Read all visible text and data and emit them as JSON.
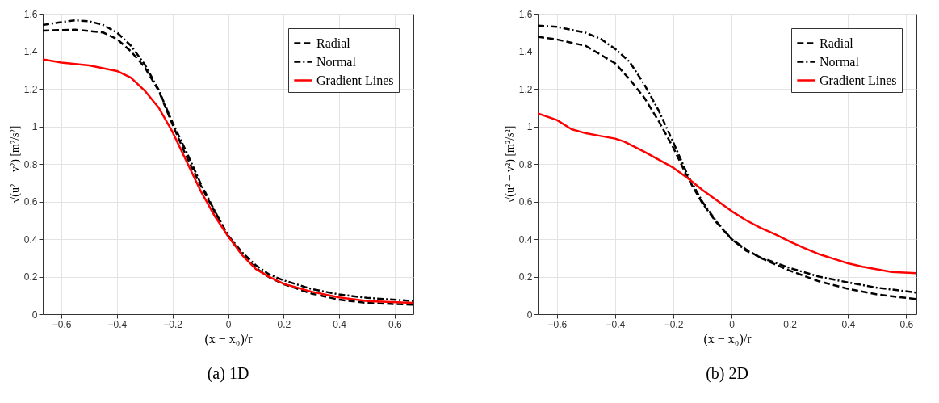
{
  "chart_data": [
    {
      "type": "line",
      "xlabel": "(x − x₀)/r",
      "ylabel": "√(u² + v²) [m²/s²]",
      "annotations": [
        "(a) 1D"
      ],
      "xlim": [
        -0.667,
        0.667
      ],
      "ylim": [
        0,
        1.6
      ],
      "xticks": [
        -0.6,
        -0.4,
        -0.2,
        0,
        0.2,
        0.4,
        0.6
      ],
      "yticks": [
        0,
        0.2,
        0.4,
        0.6,
        0.8,
        1,
        1.2,
        1.4,
        1.6
      ],
      "grid": true,
      "legend": "top right",
      "series": [
        {
          "name": "Radial",
          "color": "#000000",
          "line_style": "dashed",
          "x": [
            -0.667,
            -0.55,
            -0.45,
            -0.4,
            -0.35,
            -0.3,
            -0.25,
            -0.2,
            -0.15,
            -0.1,
            -0.05,
            0,
            0.05,
            0.1,
            0.15,
            0.2,
            0.3,
            0.4,
            0.5,
            0.667
          ],
          "values": [
            1.51,
            1.515,
            1.5,
            1.465,
            1.4,
            1.315,
            1.19,
            1.01,
            0.84,
            0.69,
            0.55,
            0.415,
            0.32,
            0.245,
            0.195,
            0.16,
            0.11,
            0.077,
            0.06,
            0.05
          ]
        },
        {
          "name": "Normal",
          "color": "#000000",
          "line_style": "dashdot",
          "x": [
            -0.667,
            -0.6,
            -0.55,
            -0.5,
            -0.45,
            -0.4,
            -0.35,
            -0.3,
            -0.25,
            -0.2,
            -0.15,
            -0.1,
            -0.05,
            0,
            0.05,
            0.1,
            0.15,
            0.2,
            0.3,
            0.4,
            0.5,
            0.667
          ],
          "values": [
            1.54,
            1.555,
            1.565,
            1.56,
            1.54,
            1.5,
            1.43,
            1.33,
            1.195,
            1.02,
            0.865,
            0.7,
            0.555,
            0.42,
            0.33,
            0.26,
            0.21,
            0.18,
            0.134,
            0.105,
            0.087,
            0.07
          ]
        },
        {
          "name": "Gradient Lines",
          "color": "#ff0000",
          "line_style": "solid",
          "x": [
            -0.667,
            -0.6,
            -0.5,
            -0.4,
            -0.35,
            -0.3,
            -0.25,
            -0.2,
            -0.15,
            -0.1,
            -0.05,
            0,
            0.05,
            0.1,
            0.15,
            0.2,
            0.3,
            0.4,
            0.5,
            0.667
          ],
          "values": [
            1.357,
            1.34,
            1.325,
            1.295,
            1.26,
            1.19,
            1.1,
            0.97,
            0.815,
            0.66,
            0.527,
            0.415,
            0.316,
            0.24,
            0.197,
            0.162,
            0.12,
            0.089,
            0.07,
            0.06
          ]
        }
      ]
    },
    {
      "type": "line",
      "xlabel": "(x − x₀)/r",
      "ylabel": "√(u² + v²) [m²/s²]",
      "annotations": [
        "(b) 2D"
      ],
      "xlim": [
        -0.666,
        0.635
      ],
      "ylim": [
        0,
        1.6
      ],
      "xticks": [
        -0.6,
        -0.4,
        -0.2,
        0,
        0.2,
        0.4,
        0.6
      ],
      "yticks": [
        0,
        0.2,
        0.4,
        0.6,
        0.8,
        1,
        1.2,
        1.4,
        1.6
      ],
      "grid": true,
      "legend": "top right",
      "series": [
        {
          "name": "Radial",
          "color": "#000000",
          "line_style": "dashed",
          "x": [
            -0.666,
            -0.6,
            -0.5,
            -0.4,
            -0.35,
            -0.3,
            -0.25,
            -0.2,
            -0.15,
            -0.1,
            -0.05,
            0,
            0.05,
            0.1,
            0.15,
            0.2,
            0.3,
            0.4,
            0.5,
            0.635
          ],
          "values": [
            1.477,
            1.463,
            1.428,
            1.336,
            1.25,
            1.153,
            1.027,
            0.886,
            0.724,
            0.59,
            0.485,
            0.4,
            0.345,
            0.3,
            0.265,
            0.232,
            0.175,
            0.135,
            0.105,
            0.08
          ]
        },
        {
          "name": "Normal",
          "color": "#000000",
          "line_style": "dashdot",
          "x": [
            -0.666,
            -0.6,
            -0.5,
            -0.45,
            -0.4,
            -0.35,
            -0.3,
            -0.25,
            -0.2,
            -0.15,
            -0.1,
            -0.05,
            0,
            0.05,
            0.1,
            0.2,
            0.3,
            0.4,
            0.5,
            0.635
          ],
          "values": [
            1.537,
            1.53,
            1.498,
            1.466,
            1.413,
            1.343,
            1.224,
            1.083,
            0.914,
            0.738,
            0.598,
            0.49,
            0.4,
            0.338,
            0.302,
            0.246,
            0.2,
            0.169,
            0.141,
            0.115
          ]
        },
        {
          "name": "Gradient Lines",
          "color": "#ff0000",
          "line_style": "solid",
          "x": [
            -0.666,
            -0.6,
            -0.55,
            -0.5,
            -0.45,
            -0.4,
            -0.37,
            -0.3,
            -0.2,
            -0.15,
            -0.1,
            -0.05,
            0,
            0.05,
            0.1,
            0.15,
            0.2,
            0.25,
            0.3,
            0.35,
            0.4,
            0.45,
            0.5,
            0.55,
            0.635
          ],
          "values": [
            1.069,
            1.034,
            0.985,
            0.963,
            0.949,
            0.935,
            0.92,
            0.865,
            0.78,
            0.724,
            0.661,
            0.605,
            0.549,
            0.5,
            0.46,
            0.425,
            0.387,
            0.352,
            0.32,
            0.295,
            0.271,
            0.253,
            0.239,
            0.225,
            0.218
          ]
        }
      ]
    }
  ]
}
